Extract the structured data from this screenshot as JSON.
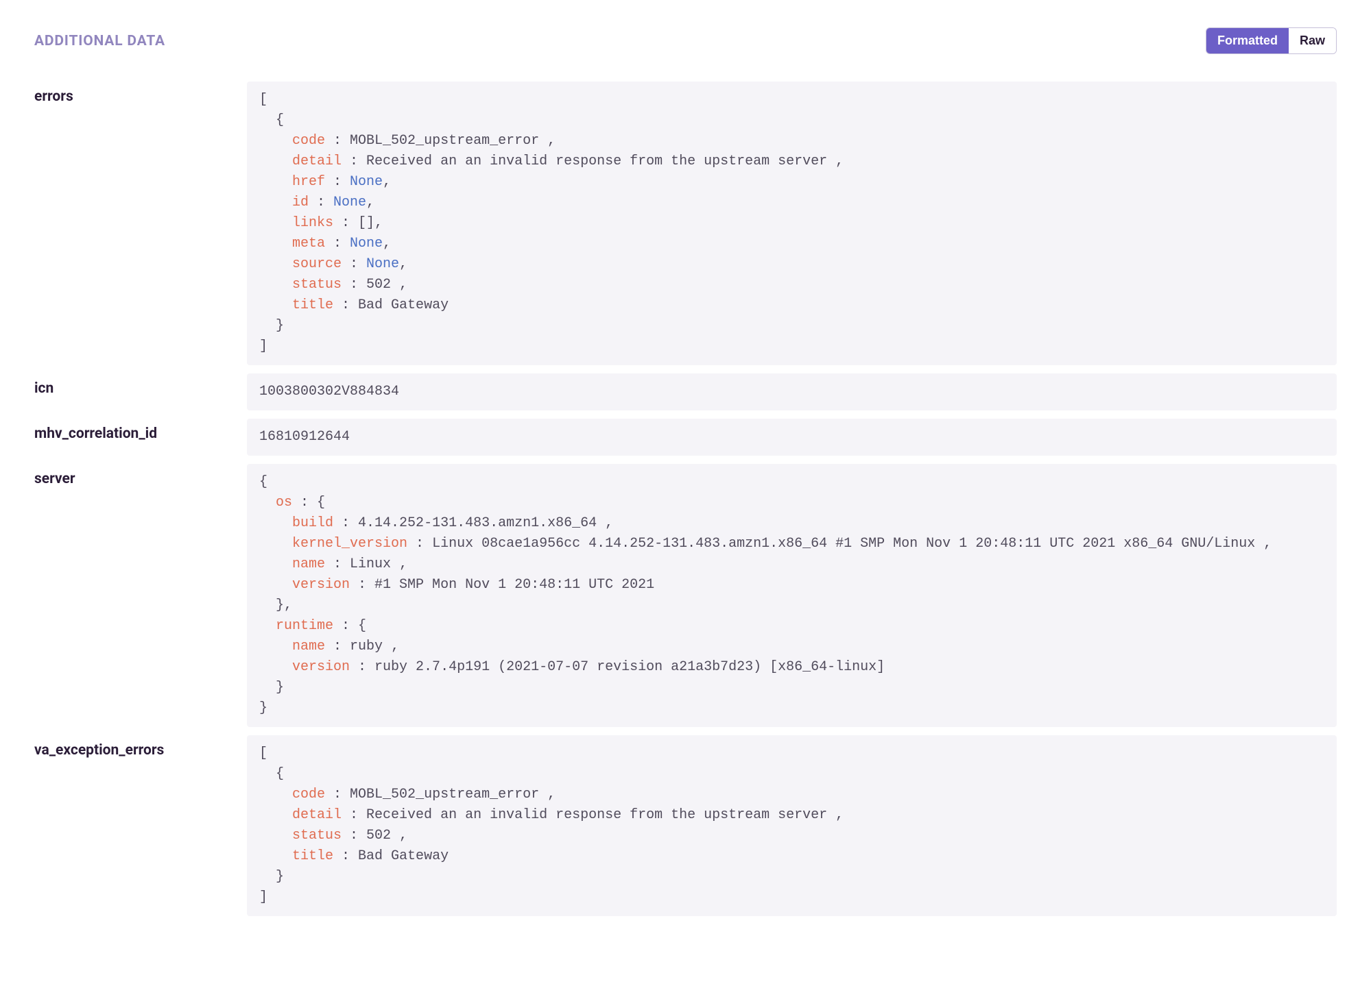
{
  "section_title": "ADDITIONAL DATA",
  "toggle": {
    "formatted": "Formatted",
    "raw": "Raw"
  },
  "colors": {
    "title": "#9186be",
    "key": "#e06c50",
    "none": "#4a6fc3",
    "text": "#514c5c",
    "panel_bg": "#f5f4f8",
    "accent": "#6c5fc7"
  },
  "rows": {
    "errors": {
      "label": "errors",
      "items": [
        {
          "code": "MOBL_502_upstream_error",
          "detail": "Received an an invalid response from the upstream server",
          "href": "None",
          "id": "None",
          "links": "[]",
          "meta": "None",
          "source": "None",
          "status": "502",
          "title": "Bad Gateway"
        }
      ]
    },
    "icn": {
      "label": "icn",
      "value": "1003800302V884834"
    },
    "mhv_correlation_id": {
      "label": "mhv_correlation_id",
      "value": "16810912644"
    },
    "server": {
      "label": "server",
      "os": {
        "build": "4.14.252-131.483.amzn1.x86_64",
        "kernel_version": "Linux 08cae1a956cc 4.14.252-131.483.amzn1.x86_64 #1 SMP Mon Nov 1 20:48:11 UTC 2021 x86_64 GNU/Linux",
        "name": "Linux",
        "version": "#1 SMP Mon Nov 1 20:48:11 UTC 2021"
      },
      "runtime": {
        "name": "ruby",
        "version": "ruby 2.7.4p191 (2021-07-07 revision a21a3b7d23) [x86_64-linux]"
      }
    },
    "va_exception_errors": {
      "label": "va_exception_errors",
      "items": [
        {
          "code": "MOBL_502_upstream_error",
          "detail": "Received an an invalid response from the upstream server",
          "status": "502",
          "title": "Bad Gateway"
        }
      ]
    }
  }
}
